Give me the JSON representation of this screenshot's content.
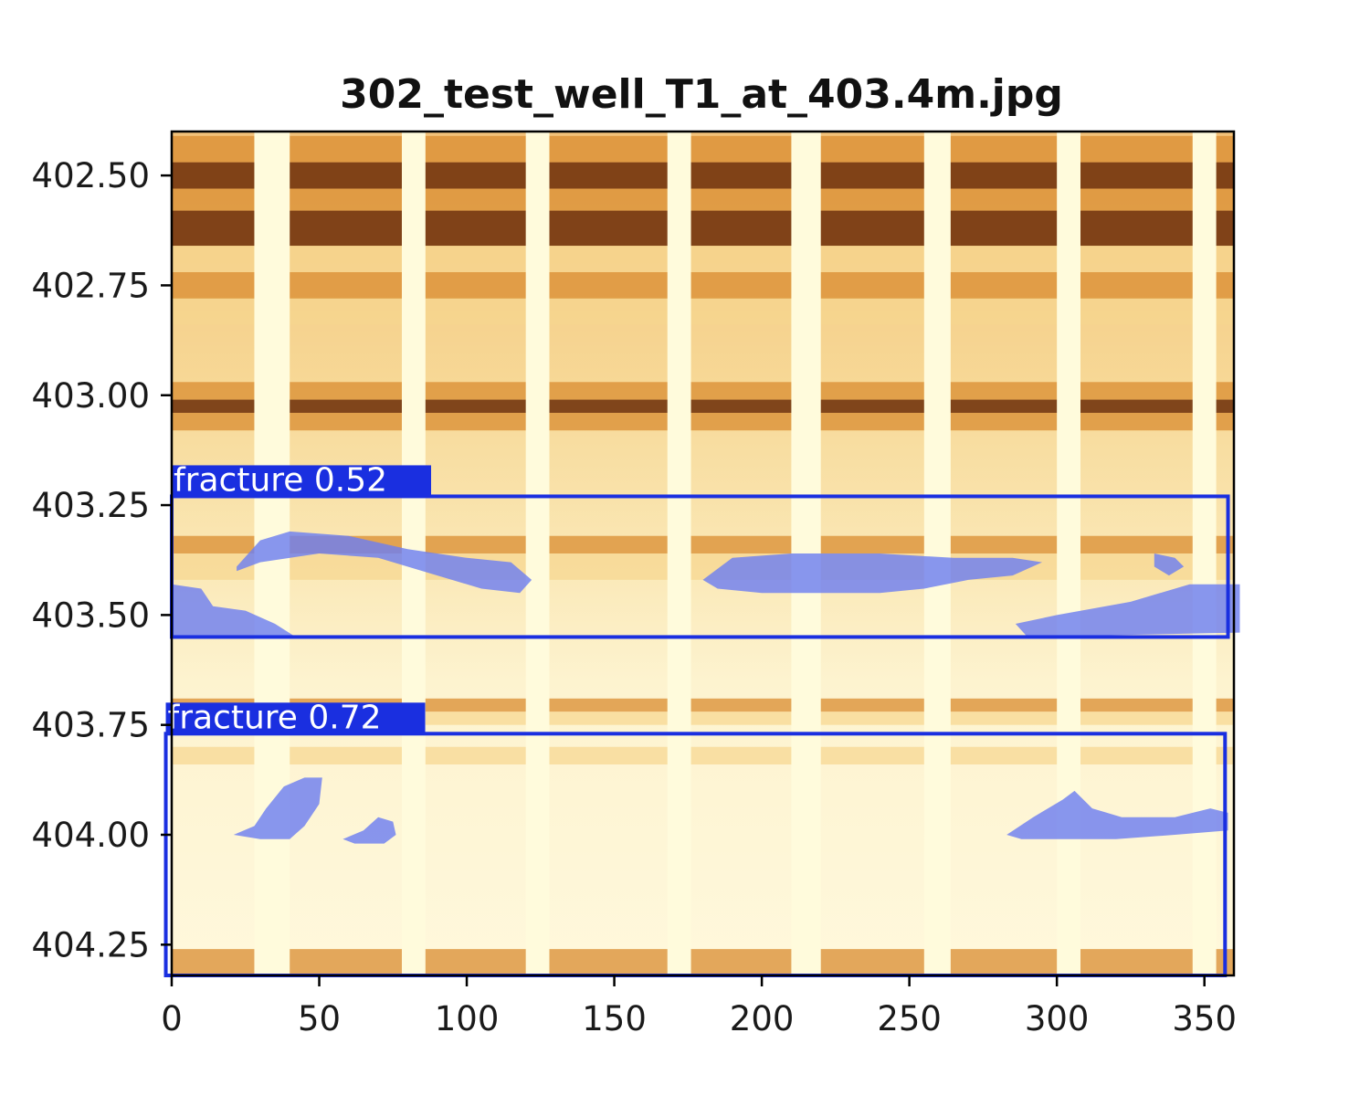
{
  "chart_data": {
    "type": "heatmap",
    "title": "302_test_well_T1_at_403.4m.jpg",
    "xlabel": "",
    "ylabel": "",
    "xlim": [
      0,
      360
    ],
    "ylim": [
      402.4,
      404.32
    ],
    "y_inverted": true,
    "x_ticks": [
      0,
      50,
      100,
      150,
      200,
      250,
      300,
      350
    ],
    "x_tick_labels": [
      "0",
      "50",
      "100",
      "150",
      "200",
      "250",
      "300",
      "350"
    ],
    "y_ticks": [
      402.5,
      402.75,
      403.0,
      403.25,
      403.5,
      403.75,
      404.0,
      404.25
    ],
    "y_tick_labels": [
      "402.50",
      "402.75",
      "403.00",
      "403.25",
      "403.50",
      "403.75",
      "404.00",
      "404.25"
    ],
    "grid": false,
    "colormap": "YlOrBr",
    "colors": {
      "box": "#1a2fe0",
      "mask": "#6e7ff0",
      "gap": "#fffbdc",
      "dark_band": "#6b2a05",
      "mid_band": "#d98c30",
      "light_band": "#f6d58e"
    },
    "gaps": [
      {
        "x0": 28,
        "x1": 40
      },
      {
        "x0": 78,
        "x1": 86
      },
      {
        "x0": 120,
        "x1": 128
      },
      {
        "x0": 168,
        "x1": 176
      },
      {
        "x0": 210,
        "x1": 220
      },
      {
        "x0": 255,
        "x1": 264
      },
      {
        "x0": 300,
        "x1": 308
      },
      {
        "x0": 346,
        "x1": 354
      }
    ],
    "bands": [
      {
        "y0": 402.41,
        "y1": 402.47,
        "level": "mid"
      },
      {
        "y0": 402.47,
        "y1": 402.53,
        "level": "dark"
      },
      {
        "y0": 402.53,
        "y1": 402.58,
        "level": "mid"
      },
      {
        "y0": 402.58,
        "y1": 402.66,
        "level": "dark"
      },
      {
        "y0": 402.66,
        "y1": 402.72,
        "level": "light"
      },
      {
        "y0": 402.72,
        "y1": 402.78,
        "level": "mid"
      },
      {
        "y0": 402.78,
        "y1": 402.84,
        "level": "light"
      },
      {
        "y0": 402.97,
        "y1": 403.01,
        "level": "mid"
      },
      {
        "y0": 403.01,
        "y1": 403.04,
        "level": "dark"
      },
      {
        "y0": 403.04,
        "y1": 403.08,
        "level": "mid"
      },
      {
        "y0": 403.32,
        "y1": 403.36,
        "level": "mid"
      },
      {
        "y0": 403.36,
        "y1": 403.42,
        "level": "light"
      },
      {
        "y0": 403.69,
        "y1": 403.72,
        "level": "mid"
      },
      {
        "y0": 403.72,
        "y1": 403.75,
        "level": "light"
      },
      {
        "y0": 403.8,
        "y1": 403.84,
        "level": "light"
      },
      {
        "y0": 404.26,
        "y1": 404.32,
        "level": "mid"
      }
    ],
    "detections": [
      {
        "label": "fracture  0.52",
        "box": {
          "x0": 0,
          "x1": 358,
          "y0": 403.23,
          "y1": 403.55
        },
        "masks": [
          [
            [
              22,
              403.39
            ],
            [
              30,
              403.33
            ],
            [
              40,
              403.31
            ],
            [
              60,
              403.32
            ],
            [
              80,
              403.35
            ],
            [
              100,
              403.37
            ],
            [
              115,
              403.38
            ],
            [
              122,
              403.42
            ],
            [
              118,
              403.45
            ],
            [
              105,
              403.44
            ],
            [
              90,
              403.41
            ],
            [
              70,
              403.37
            ],
            [
              50,
              403.36
            ],
            [
              30,
              403.38
            ],
            [
              22,
              403.4
            ]
          ],
          [
            [
              0,
              403.43
            ],
            [
              10,
              403.44
            ],
            [
              14,
              403.48
            ],
            [
              25,
              403.49
            ],
            [
              35,
              403.52
            ],
            [
              42,
              403.55
            ],
            [
              0,
              403.55
            ]
          ],
          [
            [
              180,
              403.42
            ],
            [
              190,
              403.37
            ],
            [
              210,
              403.36
            ],
            [
              240,
              403.36
            ],
            [
              265,
              403.37
            ],
            [
              285,
              403.37
            ],
            [
              295,
              403.38
            ],
            [
              285,
              403.41
            ],
            [
              270,
              403.42
            ],
            [
              255,
              403.44
            ],
            [
              240,
              403.45
            ],
            [
              220,
              403.45
            ],
            [
              200,
              403.45
            ],
            [
              185,
              403.44
            ]
          ],
          [
            [
              333,
              403.36
            ],
            [
              340,
              403.37
            ],
            [
              343,
              403.39
            ],
            [
              338,
              403.41
            ],
            [
              333,
              403.39
            ]
          ],
          [
            [
              286,
              403.52
            ],
            [
              300,
              403.5
            ],
            [
              325,
              403.47
            ],
            [
              345,
              403.43
            ],
            [
              362,
              403.43
            ],
            [
              362,
              403.54
            ],
            [
              290,
              403.55
            ]
          ]
        ]
      },
      {
        "label": "fracture  0.72",
        "box": {
          "x0": -2,
          "x1": 357,
          "y0": 403.77,
          "y1": 404.32
        },
        "masks": [
          [
            [
              21,
              404.0
            ],
            [
              28,
              403.98
            ],
            [
              32,
              403.94
            ],
            [
              38,
              403.89
            ],
            [
              45,
              403.87
            ],
            [
              51,
              403.87
            ],
            [
              50,
              403.93
            ],
            [
              45,
              403.98
            ],
            [
              40,
              404.01
            ],
            [
              30,
              404.01
            ]
          ],
          [
            [
              58,
              404.01
            ],
            [
              65,
              403.99
            ],
            [
              70,
              403.96
            ],
            [
              75,
              403.97
            ],
            [
              76,
              404.0
            ],
            [
              72,
              404.02
            ],
            [
              62,
              404.02
            ]
          ],
          [
            [
              283,
              404.0
            ],
            [
              292,
              403.96
            ],
            [
              302,
              403.92
            ],
            [
              306,
              403.9
            ],
            [
              312,
              403.94
            ],
            [
              322,
              403.96
            ],
            [
              340,
              403.96
            ],
            [
              352,
              403.94
            ],
            [
              358,
              403.95
            ],
            [
              358,
              403.99
            ],
            [
              340,
              404.0
            ],
            [
              320,
              404.01
            ],
            [
              300,
              404.01
            ],
            [
              288,
              404.01
            ]
          ]
        ]
      }
    ]
  }
}
